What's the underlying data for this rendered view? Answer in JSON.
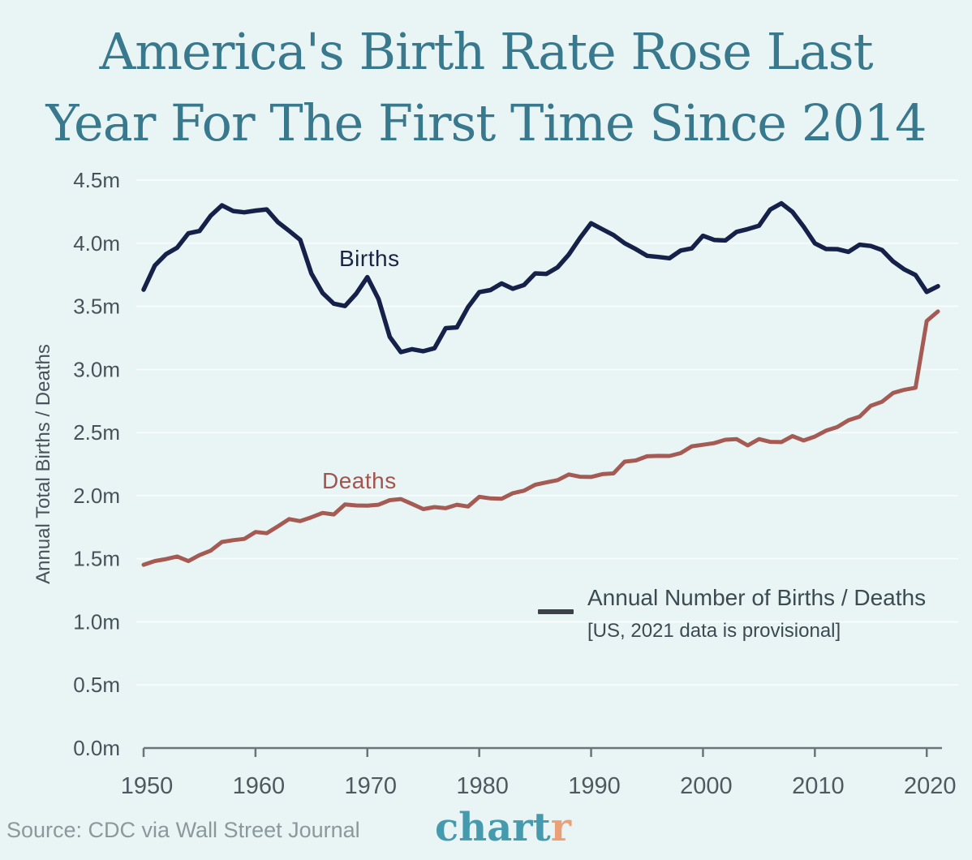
{
  "title": {
    "line1": "America's Birth Rate Rose Last",
    "line2": "Year For The First Time Since 2014"
  },
  "y_axis_title": "Annual Total Births / Deaths",
  "series_labels": {
    "births": "Births",
    "deaths": "Deaths"
  },
  "legend": {
    "line1": "Annual Number of Births / Deaths",
    "line2": "[US, 2021 data is provisional]"
  },
  "footer": {
    "source": "Source: CDC via Wall Street Journal",
    "logo_main": "chart",
    "logo_accent": "r"
  },
  "colors": {
    "background": "#e9f4f5",
    "title_teal": "#39798e",
    "births_navy": "#152149",
    "deaths_red": "#a55b53",
    "gridline": "#f6fbfb",
    "axis_gray": "#6b7579",
    "tick_label_gray": "#46535a",
    "legend_dash": "#3b4247",
    "source_gray": "#8c999b",
    "logo_teal": "#469aae",
    "logo_orange": "#eb9f76"
  },
  "chart_data": {
    "type": "line",
    "title": "America's Birth Rate Rose Last Year For The First Time Since 2014",
    "xlabel": "",
    "ylabel": "Annual Total Births / Deaths",
    "legend_label": "Annual Number of Births / Deaths [US, 2021 data is provisional]",
    "legend_position": "center-right",
    "grid": "horizontal",
    "units": "millions",
    "ylim": [
      0,
      4.5
    ],
    "xlim": [
      1950,
      2021
    ],
    "y_ticks": [
      0,
      0.5,
      1.0,
      1.5,
      2.0,
      2.5,
      3.0,
      3.5,
      4.0,
      4.5
    ],
    "y_tick_labels": [
      "0.0m",
      "0.5m",
      "1.0m",
      "1.5m",
      "2.0m",
      "2.5m",
      "3.0m",
      "3.5m",
      "4.0m",
      "4.5m"
    ],
    "x_ticks": [
      1950,
      1960,
      1970,
      1980,
      1990,
      2000,
      2010,
      2020
    ],
    "x": [
      1950,
      1951,
      1952,
      1953,
      1954,
      1955,
      1956,
      1957,
      1958,
      1959,
      1960,
      1961,
      1962,
      1963,
      1964,
      1965,
      1966,
      1967,
      1968,
      1969,
      1970,
      1971,
      1972,
      1973,
      1974,
      1975,
      1976,
      1977,
      1978,
      1979,
      1980,
      1981,
      1982,
      1983,
      1984,
      1985,
      1986,
      1987,
      1988,
      1989,
      1990,
      1991,
      1992,
      1993,
      1994,
      1995,
      1996,
      1997,
      1998,
      1999,
      2000,
      2001,
      2002,
      2003,
      2004,
      2005,
      2006,
      2007,
      2008,
      2009,
      2010,
      2011,
      2012,
      2013,
      2014,
      2015,
      2016,
      2017,
      2018,
      2019,
      2020,
      2021
    ],
    "series": [
      {
        "name": "Births",
        "color": "#152149",
        "stroke_width": 5.5,
        "values": [
          3.632,
          3.823,
          3.913,
          3.965,
          4.078,
          4.097,
          4.218,
          4.3,
          4.255,
          4.245,
          4.258,
          4.268,
          4.167,
          4.098,
          4.027,
          3.76,
          3.606,
          3.521,
          3.502,
          3.6,
          3.731,
          3.556,
          3.258,
          3.137,
          3.16,
          3.144,
          3.168,
          3.327,
          3.333,
          3.494,
          3.612,
          3.629,
          3.681,
          3.639,
          3.669,
          3.761,
          3.757,
          3.809,
          3.91,
          4.041,
          4.158,
          4.111,
          4.065,
          4.0,
          3.953,
          3.9,
          3.891,
          3.881,
          3.942,
          3.959,
          4.059,
          4.026,
          4.022,
          4.09,
          4.112,
          4.138,
          4.266,
          4.316,
          4.248,
          4.131,
          3.999,
          3.954,
          3.953,
          3.932,
          3.988,
          3.978,
          3.946,
          3.855,
          3.792,
          3.748,
          3.614,
          3.659
        ]
      },
      {
        "name": "Deaths",
        "color": "#a55b53",
        "stroke_width": 5,
        "values": [
          1.452,
          1.482,
          1.497,
          1.518,
          1.481,
          1.529,
          1.564,
          1.633,
          1.647,
          1.657,
          1.712,
          1.702,
          1.757,
          1.814,
          1.798,
          1.828,
          1.863,
          1.851,
          1.93,
          1.922,
          1.921,
          1.928,
          1.964,
          1.973,
          1.934,
          1.893,
          1.909,
          1.9,
          1.928,
          1.914,
          1.99,
          1.978,
          1.975,
          2.019,
          2.039,
          2.086,
          2.105,
          2.123,
          2.168,
          2.15,
          2.148,
          2.17,
          2.176,
          2.269,
          2.279,
          2.312,
          2.315,
          2.314,
          2.337,
          2.391,
          2.403,
          2.416,
          2.443,
          2.448,
          2.398,
          2.448,
          2.426,
          2.424,
          2.472,
          2.437,
          2.468,
          2.515,
          2.543,
          2.597,
          2.626,
          2.712,
          2.744,
          2.814,
          2.839,
          2.855,
          3.384,
          3.459
        ]
      }
    ]
  }
}
